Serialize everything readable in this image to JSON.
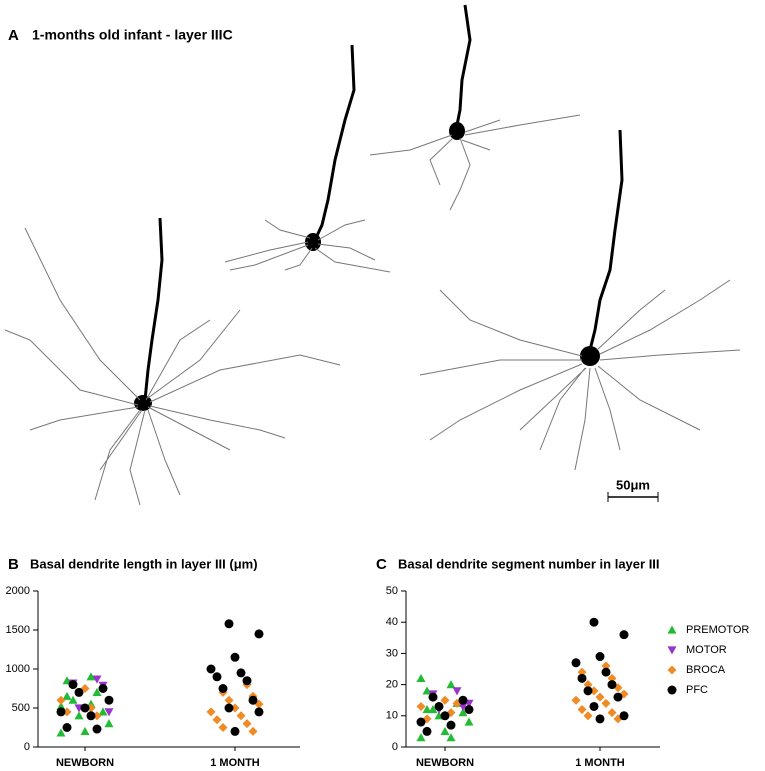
{
  "panel_a": {
    "label": "A",
    "title": "1-months old infant - layer IIIC",
    "scale_bar": "50μm"
  },
  "chart_data": [
    {
      "type": "scatter",
      "panel_label": "B",
      "title": "Basal dendrite length in layer III (μm)",
      "categories": [
        "NEWBORN",
        "1 MONTH"
      ],
      "ylim": [
        0,
        2000
      ],
      "yticks": [
        0,
        500,
        1000,
        1500,
        2000
      ],
      "series": [
        {
          "color": "#22bb33",
          "marker": "triangle-up",
          "values": [
            [
              520,
              900,
              850,
              700,
              600,
              450,
              400,
              300,
              200,
              180,
              550,
              650
            ],
            []
          ]
        },
        {
          "color": "#9933cc",
          "marker": "triangle-down",
          "values": [
            [
              870,
              820,
              790,
              500,
              450
            ],
            []
          ]
        },
        {
          "color": "#f08a24",
          "marker": "diamond",
          "values": [
            [
              750,
              600,
              500,
              450,
              400
            ],
            [
              1000,
              950,
              900,
              800,
              700,
              650,
              600,
              550,
              500,
              450,
              400,
              350,
              300,
              250,
              200
            ]
          ]
        },
        {
          "color": "#000000",
          "marker": "circle",
          "values": [
            [
              800,
              750,
              700,
              600,
              500,
              450,
              400,
              250,
              230
            ],
            [
              1580,
              1450,
              1150,
              1000,
              950,
              900,
              850,
              750,
              600,
              500,
              450,
              200
            ]
          ]
        }
      ]
    },
    {
      "type": "scatter",
      "panel_label": "C",
      "title": "Basal dendrite segment number in layer III",
      "categories": [
        "NEWBORN",
        "1 MONTH"
      ],
      "ylim": [
        0,
        50
      ],
      "yticks": [
        0,
        10,
        20,
        30,
        40,
        50
      ],
      "series": [
        {
          "name": "PREMOTOR",
          "color": "#22bb33",
          "marker": "triangle-up",
          "values": [
            [
              22,
              20,
              18,
              14,
              12,
              11,
              10,
              8,
              5,
              3,
              3,
              12
            ],
            []
          ]
        },
        {
          "name": "MOTOR",
          "color": "#9933cc",
          "marker": "triangle-down",
          "values": [
            [
              18,
              17,
              13,
              12,
              14
            ],
            []
          ]
        },
        {
          "name": "BROCA",
          "color": "#f08a24",
          "marker": "diamond",
          "values": [
            [
              15,
              13,
              11,
              9,
              14
            ],
            [
              27,
              26,
              24,
              22,
              20,
              19,
              18,
              17,
              16,
              15,
              14,
              12,
              11,
              10,
              9
            ]
          ]
        },
        {
          "name": "PFC",
          "color": "#000000",
          "marker": "circle",
          "values": [
            [
              16,
              15,
              13,
              12,
              10,
              8,
              7,
              5
            ],
            [
              40,
              36,
              29,
              27,
              24,
              22,
              20,
              18,
              16,
              13,
              10,
              9
            ]
          ]
        }
      ]
    }
  ]
}
